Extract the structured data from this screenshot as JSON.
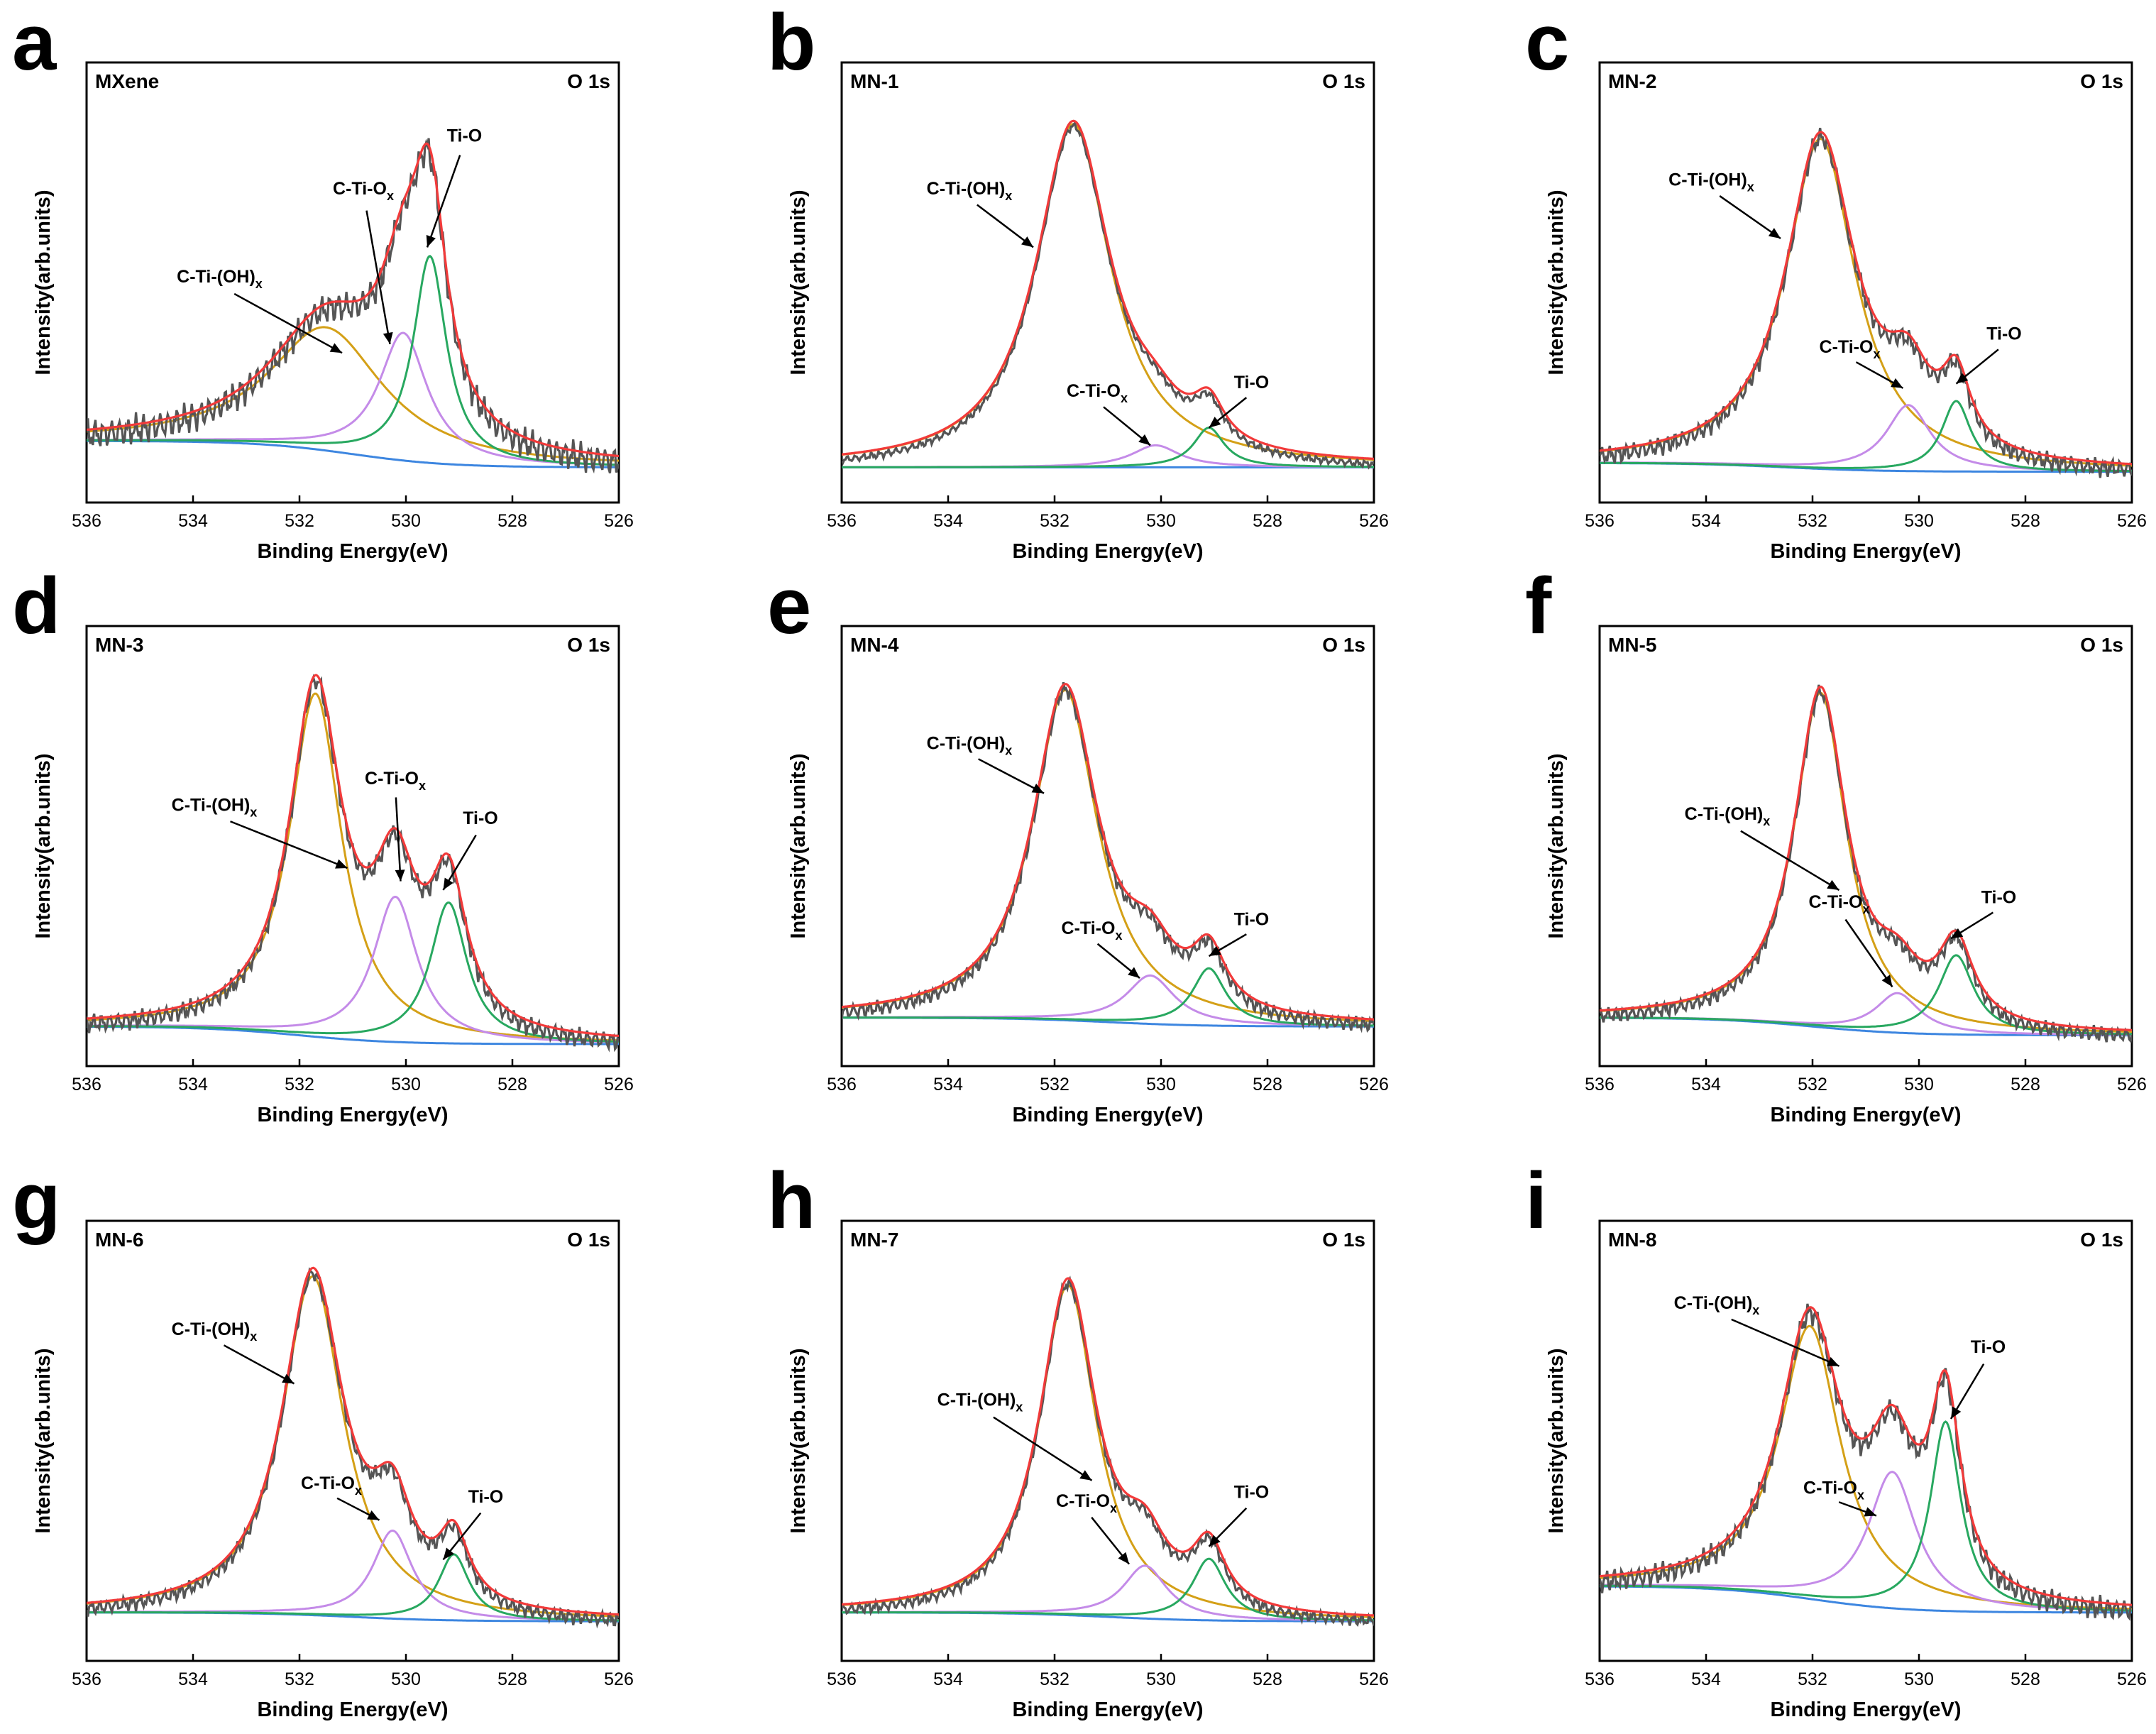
{
  "chart_data": [
    {
      "panel": "a",
      "sample": "MXene",
      "region": "O 1s",
      "type": "line",
      "xlabel": "Binding Energy(eV)",
      "ylabel": "Intensity(arb.units)",
      "xlim": [
        536,
        526
      ],
      "xticks": [
        536,
        534,
        532,
        530,
        528,
        526
      ],
      "ylim": [
        0,
        100
      ],
      "noise": 4,
      "baseline": {
        "start": 14,
        "end": 8,
        "center": 531
      },
      "peaks": [
        {
          "name": "C-Ti-(OH)x",
          "center": 531.5,
          "height": 28,
          "width": 1.3
        },
        {
          "name": "C-Ti-Ox",
          "center": 530.05,
          "height": 29,
          "width": 0.55
        },
        {
          "name": "Ti-O",
          "center": 529.55,
          "height": 47,
          "width": 0.38
        }
      ],
      "labels": [
        {
          "text": "C-Ti-(OH)",
          "sub": "x",
          "tx": 533.5,
          "ty": 50,
          "ax": 531.2,
          "ay": 34
        },
        {
          "text": "C-Ti-O",
          "sub": "x",
          "tx": 530.8,
          "ty": 70,
          "ax": 530.3,
          "ay": 36
        },
        {
          "text": "Ti-O",
          "tx": 528.9,
          "ty": 82,
          "ax": 529.6,
          "ay": 58
        }
      ]
    },
    {
      "panel": "b",
      "sample": "MN-1",
      "region": "O 1s",
      "type": "line",
      "xlabel": "Binding Energy(eV)",
      "ylabel": "Intensity(arb.units)",
      "xlim": [
        536,
        526
      ],
      "xticks": [
        536,
        534,
        532,
        530,
        528,
        526
      ],
      "ylim": [
        0,
        100
      ],
      "noise": 1,
      "baseline": {
        "start": 8,
        "end": 8,
        "center": 531
      },
      "peaks": [
        {
          "name": "C-Ti-(OH)x",
          "center": 531.65,
          "height": 78,
          "width": 0.85
        },
        {
          "name": "C-Ti-Ox",
          "center": 530.1,
          "height": 5,
          "width": 0.55
        },
        {
          "name": "Ti-O",
          "center": 529.1,
          "height": 9,
          "width": 0.35
        }
      ],
      "labels": [
        {
          "text": "C-Ti-(OH)",
          "sub": "x",
          "tx": 533.6,
          "ty": 70,
          "ax": 532.4,
          "ay": 58
        },
        {
          "text": "C-Ti-O",
          "sub": "x",
          "tx": 531.2,
          "ty": 24,
          "ax": 530.2,
          "ay": 13
        },
        {
          "text": "Ti-O",
          "tx": 528.3,
          "ty": 26,
          "ax": 529.1,
          "ay": 17
        }
      ]
    },
    {
      "panel": "c",
      "sample": "MN-2",
      "region": "O 1s",
      "type": "line",
      "xlabel": "Binding Energy(eV)",
      "ylabel": "Intensity(arb.units)",
      "xlim": [
        536,
        526
      ],
      "xticks": [
        536,
        534,
        532,
        530,
        528,
        526
      ],
      "ylim": [
        0,
        100
      ],
      "noise": 2.5,
      "baseline": {
        "start": 9,
        "end": 7,
        "center": 532.5
      },
      "peaks": [
        {
          "name": "C-Ti-(OH)x",
          "center": 531.85,
          "height": 75,
          "width": 0.8
        },
        {
          "name": "C-Ti-Ox",
          "center": 530.2,
          "height": 15,
          "width": 0.5
        },
        {
          "name": "Ti-O",
          "center": 529.3,
          "height": 16,
          "width": 0.33
        }
      ],
      "labels": [
        {
          "text": "C-Ti-(OH)",
          "sub": "x",
          "tx": 533.9,
          "ty": 72,
          "ax": 532.6,
          "ay": 60
        },
        {
          "text": "C-Ti-O",
          "sub": "x",
          "tx": 531.3,
          "ty": 34,
          "ax": 530.3,
          "ay": 26
        },
        {
          "text": "Ti-O",
          "tx": 528.4,
          "ty": 37,
          "ax": 529.3,
          "ay": 27
        }
      ]
    },
    {
      "panel": "d",
      "sample": "MN-3",
      "region": "O 1s",
      "type": "line",
      "xlabel": "Binding Energy(eV)",
      "ylabel": "Intensity(arb.units)",
      "xlim": [
        536,
        526
      ],
      "xticks": [
        536,
        534,
        532,
        530,
        528,
        526
      ],
      "ylim": [
        0,
        100
      ],
      "noise": 2.5,
      "baseline": {
        "start": 9,
        "end": 5,
        "center": 532
      },
      "peaks": [
        {
          "name": "C-Ti-(OH)x",
          "center": 531.7,
          "height": 78,
          "width": 0.6
        },
        {
          "name": "C-Ti-Ox",
          "center": 530.2,
          "height": 33,
          "width": 0.5
        },
        {
          "name": "Ti-O",
          "center": 529.2,
          "height": 32,
          "width": 0.42
        }
      ],
      "labels": [
        {
          "text": "C-Ti-(OH)",
          "sub": "x",
          "tx": 533.6,
          "ty": 58,
          "ax": 531.1,
          "ay": 45
        },
        {
          "text": "C-Ti-O",
          "sub": "x",
          "tx": 530.2,
          "ty": 64,
          "ax": 530.1,
          "ay": 42
        },
        {
          "text": "Ti-O",
          "tx": 528.6,
          "ty": 55,
          "ax": 529.3,
          "ay": 40
        }
      ]
    },
    {
      "panel": "e",
      "sample": "MN-4",
      "region": "O 1s",
      "type": "line",
      "xlabel": "Binding Energy(eV)",
      "ylabel": "Intensity(arb.units)",
      "xlim": [
        536,
        526
      ],
      "xticks": [
        536,
        534,
        532,
        530,
        528,
        526
      ],
      "ylim": [
        0,
        100
      ],
      "noise": 2,
      "baseline": {
        "start": 11,
        "end": 9,
        "center": 531
      },
      "peaks": [
        {
          "name": "C-Ti-(OH)x",
          "center": 531.8,
          "height": 75,
          "width": 0.75
        },
        {
          "name": "C-Ti-Ox",
          "center": 530.2,
          "height": 11,
          "width": 0.55
        },
        {
          "name": "Ti-O",
          "center": 529.1,
          "height": 13,
          "width": 0.38
        }
      ],
      "labels": [
        {
          "text": "C-Ti-(OH)",
          "sub": "x",
          "tx": 533.6,
          "ty": 72,
          "ax": 532.2,
          "ay": 62
        },
        {
          "text": "C-Ti-O",
          "sub": "x",
          "tx": 531.3,
          "ty": 30,
          "ax": 530.4,
          "ay": 20
        },
        {
          "text": "Ti-O",
          "tx": 528.3,
          "ty": 32,
          "ax": 529.1,
          "ay": 25
        }
      ]
    },
    {
      "panel": "f",
      "sample": "MN-5",
      "region": "O 1s",
      "type": "line",
      "xlabel": "Binding Energy(eV)",
      "ylabel": "Intensity(arb.units)",
      "xlim": [
        536,
        526
      ],
      "xticks": [
        536,
        534,
        532,
        530,
        528,
        526
      ],
      "ylim": [
        0,
        100
      ],
      "noise": 2,
      "baseline": {
        "start": 11,
        "end": 7,
        "center": 532
      },
      "peaks": [
        {
          "name": "C-Ti-(OH)x",
          "center": 531.85,
          "height": 76,
          "width": 0.6
        },
        {
          "name": "C-Ti-Ox",
          "center": 530.4,
          "height": 9,
          "width": 0.5
        },
        {
          "name": "Ti-O",
          "center": 529.3,
          "height": 18,
          "width": 0.4
        }
      ],
      "labels": [
        {
          "text": "C-Ti-(OH)",
          "sub": "x",
          "tx": 533.6,
          "ty": 56,
          "ax": 531.5,
          "ay": 40
        },
        {
          "text": "C-Ti-O",
          "sub": "x",
          "tx": 531.5,
          "ty": 36,
          "ax": 530.5,
          "ay": 18
        },
        {
          "text": "Ti-O",
          "tx": 528.5,
          "ty": 37,
          "ax": 529.4,
          "ay": 29
        }
      ]
    },
    {
      "panel": "g",
      "sample": "MN-6",
      "region": "O 1s",
      "type": "line",
      "xlabel": "Binding Energy(eV)",
      "ylabel": "Intensity(arb.units)",
      "xlim": [
        536,
        526
      ],
      "xticks": [
        536,
        534,
        532,
        530,
        528,
        526
      ],
      "ylim": [
        0,
        100
      ],
      "noise": 2,
      "baseline": {
        "start": 11,
        "end": 9,
        "center": 531
      },
      "peaks": [
        {
          "name": "C-Ti-(OH)x",
          "center": 531.75,
          "height": 77,
          "width": 0.7
        },
        {
          "name": "C-Ti-Ox",
          "center": 530.25,
          "height": 20,
          "width": 0.45
        },
        {
          "name": "Ti-O",
          "center": 529.1,
          "height": 15,
          "width": 0.35
        }
      ],
      "labels": [
        {
          "text": "C-Ti-(OH)",
          "sub": "x",
          "tx": 533.6,
          "ty": 74,
          "ax": 532.1,
          "ay": 63
        },
        {
          "text": "C-Ti-O",
          "sub": "x",
          "tx": 531.4,
          "ty": 39,
          "ax": 530.5,
          "ay": 32
        },
        {
          "text": "Ti-O",
          "tx": 528.5,
          "ty": 36,
          "ax": 529.3,
          "ay": 23
        }
      ]
    },
    {
      "panel": "h",
      "sample": "MN-7",
      "region": "O 1s",
      "type": "line",
      "xlabel": "Binding Energy(eV)",
      "ylabel": "Intensity(arb.units)",
      "xlim": [
        536,
        526
      ],
      "xticks": [
        536,
        534,
        532,
        530,
        528,
        526
      ],
      "ylim": [
        0,
        100
      ],
      "noise": 1.5,
      "baseline": {
        "start": 11,
        "end": 9,
        "center": 531
      },
      "peaks": [
        {
          "name": "C-Ti-(OH)x",
          "center": 531.75,
          "height": 75,
          "width": 0.65
        },
        {
          "name": "C-Ti-Ox",
          "center": 530.3,
          "height": 12,
          "width": 0.5
        },
        {
          "name": "Ti-O",
          "center": 529.1,
          "height": 14,
          "width": 0.38
        }
      ],
      "labels": [
        {
          "text": "C-Ti-(OH)",
          "sub": "x",
          "tx": 533.4,
          "ty": 58,
          "ax": 531.3,
          "ay": 41
        },
        {
          "text": "C-Ti-O",
          "sub": "x",
          "tx": 531.4,
          "ty": 35,
          "ax": 530.6,
          "ay": 22
        },
        {
          "text": "Ti-O",
          "tx": 528.3,
          "ty": 37,
          "ax": 529.1,
          "ay": 26
        }
      ]
    },
    {
      "panel": "i",
      "sample": "MN-8",
      "region": "O 1s",
      "type": "line",
      "xlabel": "Binding Energy(eV)",
      "ylabel": "Intensity(arb.units)",
      "xlim": [
        536,
        526
      ],
      "xticks": [
        536,
        534,
        532,
        530,
        528,
        526
      ],
      "ylim": [
        0,
        100
      ],
      "noise": 3,
      "baseline": {
        "start": 17,
        "end": 11,
        "center": 532
      },
      "peaks": [
        {
          "name": "C-Ti-(OH)x",
          "center": 532.05,
          "height": 62,
          "width": 0.7
        },
        {
          "name": "C-Ti-Ox",
          "center": 530.5,
          "height": 31,
          "width": 0.55
        },
        {
          "name": "Ti-O",
          "center": 529.5,
          "height": 43,
          "width": 0.35
        }
      ],
      "labels": [
        {
          "text": "C-Ti-(OH)",
          "sub": "x",
          "tx": 533.8,
          "ty": 80,
          "ax": 531.5,
          "ay": 67
        },
        {
          "text": "C-Ti-O",
          "sub": "x",
          "tx": 531.6,
          "ty": 38,
          "ax": 530.8,
          "ay": 33
        },
        {
          "text": "Ti-O",
          "tx": 528.7,
          "ty": 70,
          "ax": 529.4,
          "ay": 55
        }
      ]
    }
  ],
  "colors": {
    "envelope": "#f23a3a",
    "raw": "#555555",
    "peak_oh": "#d4a017",
    "peak_ox": "#c48be8",
    "peak_tio": "#28a860",
    "background": "#3d86e0"
  }
}
